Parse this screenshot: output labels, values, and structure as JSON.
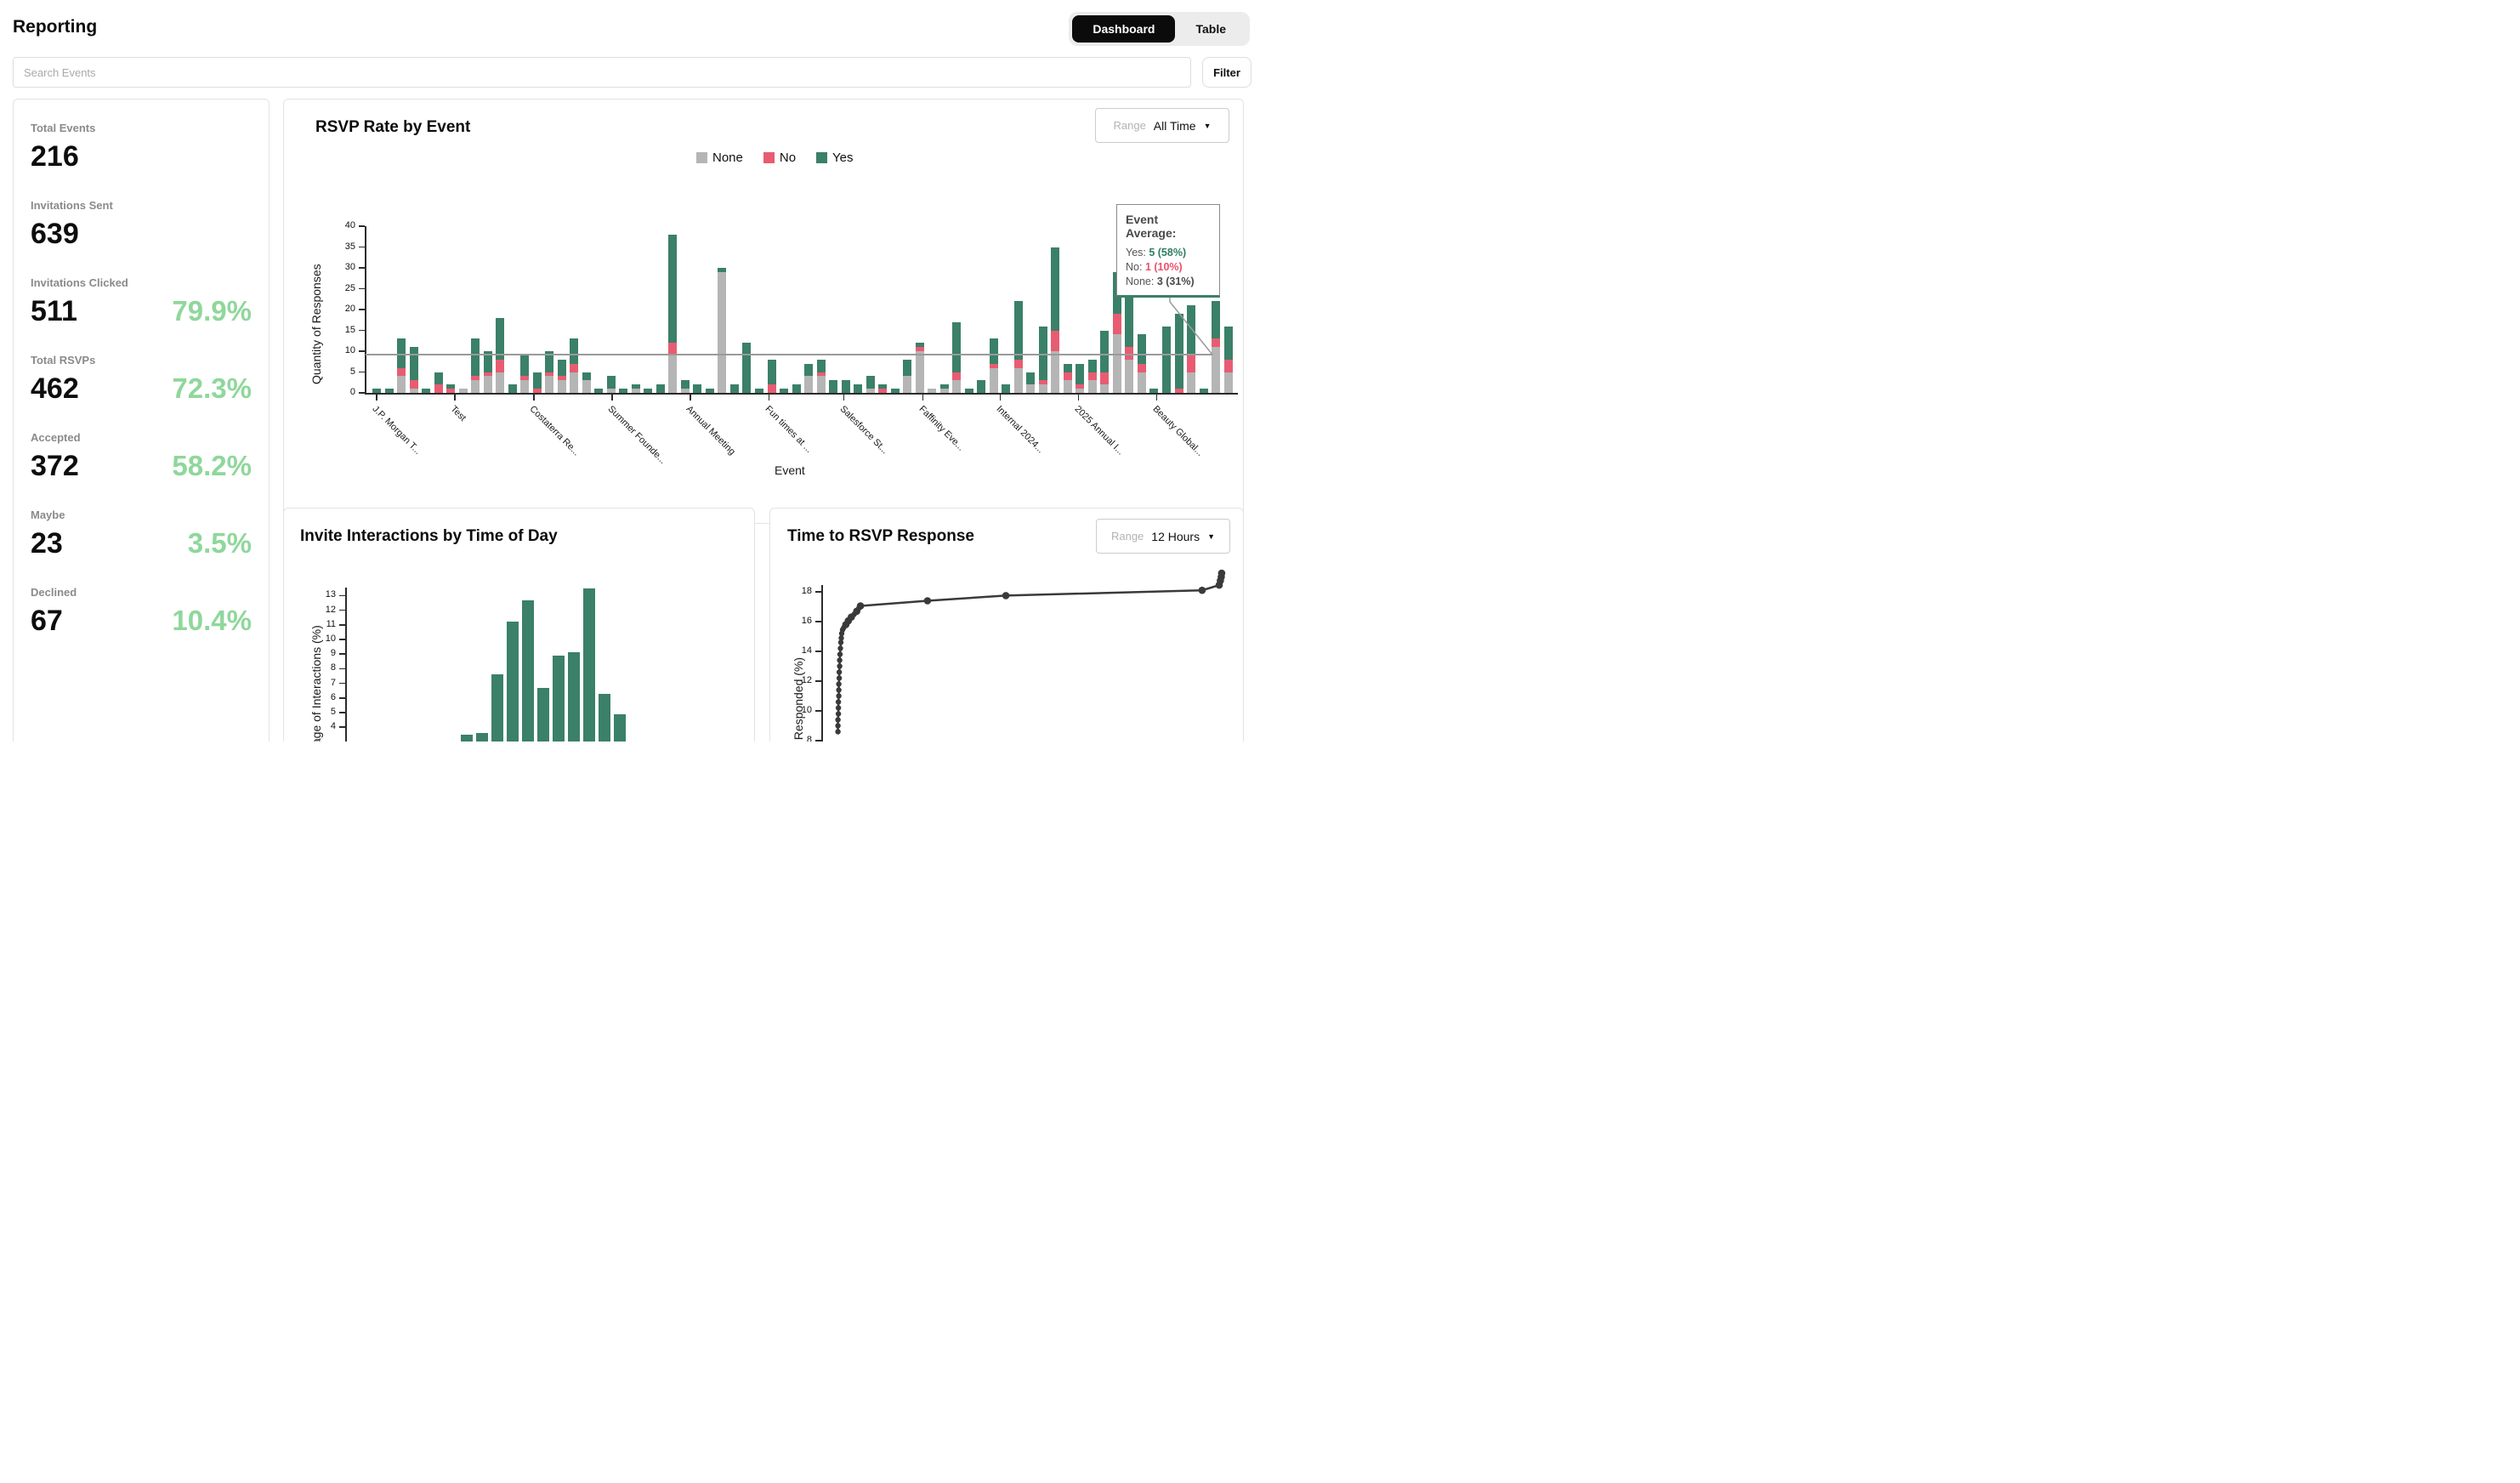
{
  "header": {
    "title": "Reporting",
    "view_toggle": {
      "dashboard_label": "Dashboard",
      "table_label": "Table",
      "active": "Dashboard"
    }
  },
  "search": {
    "placeholder": "Search Events",
    "filter_label": "Filter"
  },
  "stats": [
    {
      "label": "Total Events",
      "value": "216",
      "percent": ""
    },
    {
      "label": "Invitations Sent",
      "value": "639",
      "percent": ""
    },
    {
      "label": "Invitations Clicked",
      "value": "511",
      "percent": "79.9%"
    },
    {
      "label": "Total RSVPs",
      "value": "462",
      "percent": "72.3%"
    },
    {
      "label": "Accepted",
      "value": "372",
      "percent": "58.2%"
    },
    {
      "label": "Maybe",
      "value": "23",
      "percent": "3.5%"
    },
    {
      "label": "Declined",
      "value": "67",
      "percent": "10.4%"
    }
  ],
  "colors": {
    "yes": "#3B8068",
    "no": "#E85C72",
    "none": "#B5B5B5",
    "stat_green": "#8FD79B",
    "avg_line": "#9A9A9A",
    "line": "#3A3A3A"
  },
  "rsvp_chart": {
    "title": "RSVP Rate by Event",
    "range_label": "Range",
    "range_value": "All Time",
    "legend": [
      "None",
      "No",
      "Yes"
    ],
    "ylabel": "Quantity of Responses",
    "xlabel": "Event",
    "tooltip": {
      "title": "Event Average:",
      "rows": [
        {
          "label": "Yes: ",
          "value": "5 (58%)"
        },
        {
          "label": "No: ",
          "value": "1 (10%)"
        },
        {
          "label": "None: ",
          "value": "3 (31%)"
        }
      ]
    }
  },
  "invite_chart": {
    "title": "Invite Interactions by Time of Day",
    "ylabel_visible": "tage of Interactions (%)"
  },
  "time_chart": {
    "title": "Time to RSVP Response",
    "range_label": "Range",
    "range_value": "12 Hours",
    "ylabel_visible": "ts Responded (%)"
  },
  "chart_data": [
    {
      "type": "bar",
      "stacked": true,
      "title": "RSVP Rate by Event",
      "xlabel": "Event",
      "ylabel": "Quantity of Responses",
      "ylim": [
        0,
        40
      ],
      "yticks": [
        0,
        5,
        10,
        15,
        20,
        25,
        30,
        35,
        40
      ],
      "average_line": 9.14,
      "legend_position": "top",
      "grid": false,
      "series_names": [
        "None",
        "No",
        "Yes"
      ],
      "bars_none_no_yes": [
        [
          0,
          0,
          1
        ],
        [
          0,
          0,
          1
        ],
        [
          4,
          2,
          7
        ],
        [
          1,
          2,
          8
        ],
        [
          0,
          0,
          1
        ],
        [
          0,
          2,
          3
        ],
        [
          0,
          1,
          1
        ],
        [
          1,
          0,
          0
        ],
        [
          3,
          1,
          9
        ],
        [
          4,
          1,
          5
        ],
        [
          5,
          3,
          10
        ],
        [
          0,
          0,
          2
        ],
        [
          3,
          1,
          5
        ],
        [
          0,
          1,
          4
        ],
        [
          4,
          1,
          5
        ],
        [
          3,
          1,
          4
        ],
        [
          5,
          2,
          6
        ],
        [
          3,
          0,
          2
        ],
        [
          0,
          0,
          1
        ],
        [
          1,
          0,
          3
        ],
        [
          0,
          0,
          1
        ],
        [
          1,
          0,
          1
        ],
        [
          0,
          0,
          1
        ],
        [
          0,
          0,
          2
        ],
        [
          9,
          3,
          26
        ],
        [
          1,
          0,
          2
        ],
        [
          0,
          0,
          2
        ],
        [
          0,
          0,
          1
        ],
        [
          29,
          0,
          1
        ],
        [
          0,
          0,
          2
        ],
        [
          0,
          0,
          12
        ],
        [
          0,
          0,
          1
        ],
        [
          0,
          2,
          6
        ],
        [
          0,
          0,
          1
        ],
        [
          0,
          0,
          2
        ],
        [
          4,
          0,
          3
        ],
        [
          4,
          1,
          3
        ],
        [
          0,
          0,
          3
        ],
        [
          0,
          0,
          3
        ],
        [
          0,
          0,
          2
        ],
        [
          1,
          0,
          3
        ],
        [
          0,
          1,
          1
        ],
        [
          0,
          0,
          1
        ],
        [
          4,
          0,
          4
        ],
        [
          10,
          1,
          1
        ],
        [
          1,
          0,
          0
        ],
        [
          1,
          0,
          1
        ],
        [
          3,
          2,
          12
        ],
        [
          0,
          0,
          1
        ],
        [
          0,
          0,
          3
        ],
        [
          6,
          1,
          6
        ],
        [
          0,
          0,
          2
        ],
        [
          6,
          2,
          14
        ],
        [
          2,
          0,
          3
        ],
        [
          2,
          1,
          13
        ],
        [
          10,
          5,
          20
        ],
        [
          3,
          2,
          2
        ],
        [
          1,
          1,
          5
        ],
        [
          3,
          2,
          3
        ],
        [
          2,
          3,
          10
        ],
        [
          14,
          5,
          10
        ],
        [
          8,
          3,
          12
        ],
        [
          5,
          2,
          7
        ],
        [
          0,
          0,
          1
        ],
        [
          0,
          0,
          16
        ],
        [
          0,
          1,
          18
        ],
        [
          5,
          4,
          12
        ],
        [
          0,
          0,
          1
        ],
        [
          11,
          2,
          9
        ],
        [
          5,
          3,
          8
        ]
      ],
      "x_tick_labels": [
        {
          "label": "J.P. Morgan T...",
          "f": 0.004
        },
        {
          "label": "Test",
          "f": 0.095
        },
        {
          "label": "Costaterra Re...",
          "f": 0.187
        },
        {
          "label": "Summer Founde...",
          "f": 0.278
        },
        {
          "label": "Annual Meeting",
          "f": 0.369
        },
        {
          "label": "Fun times at ...",
          "f": 0.46
        },
        {
          "label": "Salesforce St...",
          "f": 0.547
        },
        {
          "label": "Faffinity Eve...",
          "f": 0.639
        },
        {
          "label": "Internal 2024...",
          "f": 0.729
        },
        {
          "label": "2025 Annual I...",
          "f": 0.82
        },
        {
          "label": "Beauty Global...",
          "f": 0.911
        }
      ]
    },
    {
      "type": "bar",
      "title": "Invite Interactions by Time of Day",
      "ylabel_visible": "tage of Interactions (%)",
      "yticks_visible": [
        13,
        12,
        11,
        10,
        9,
        8,
        7,
        6,
        5,
        4
      ],
      "values": [
        3.5,
        3.6,
        7.6,
        11.2,
        12.7,
        6.7,
        8.9,
        9.1,
        13.5,
        6.3,
        4.9
      ],
      "grid": false
    },
    {
      "type": "line",
      "title": "Time to RSVP Response",
      "ylabel_visible": "ts Responded (%)",
      "yticks_visible": [
        18,
        16,
        14,
        12,
        10,
        8
      ],
      "points_xfrac_y_big": [
        [
          0.04,
          8.6,
          0
        ],
        [
          0.04,
          9.0,
          0
        ],
        [
          0.04,
          9.4,
          0
        ],
        [
          0.041,
          9.8,
          0
        ],
        [
          0.041,
          10.2,
          0
        ],
        [
          0.041,
          10.6,
          0
        ],
        [
          0.042,
          11.0,
          0
        ],
        [
          0.042,
          11.4,
          0
        ],
        [
          0.042,
          11.8,
          0
        ],
        [
          0.043,
          12.2,
          0
        ],
        [
          0.043,
          12.6,
          0
        ],
        [
          0.044,
          13.0,
          0
        ],
        [
          0.044,
          13.4,
          0
        ],
        [
          0.045,
          13.8,
          0
        ],
        [
          0.046,
          14.2,
          0
        ],
        [
          0.047,
          14.6,
          0
        ],
        [
          0.048,
          14.9,
          0
        ],
        [
          0.049,
          15.2,
          0
        ],
        [
          0.051,
          15.45,
          0
        ],
        [
          0.054,
          15.6,
          0
        ],
        [
          0.059,
          15.8,
          1
        ],
        [
          0.065,
          16.05,
          1
        ],
        [
          0.072,
          16.3,
          1
        ],
        [
          0.079,
          16.5,
          0
        ],
        [
          0.085,
          16.7,
          1
        ],
        [
          0.09,
          16.9,
          0
        ],
        [
          0.094,
          17.05,
          1
        ],
        [
          0.255,
          17.4,
          1
        ],
        [
          0.443,
          17.75,
          1
        ],
        [
          0.914,
          18.1,
          1
        ],
        [
          0.955,
          18.45,
          1
        ],
        [
          0.958,
          18.75,
          1
        ],
        [
          0.96,
          19.0,
          1
        ],
        [
          0.961,
          19.25,
          1
        ]
      ]
    }
  ]
}
